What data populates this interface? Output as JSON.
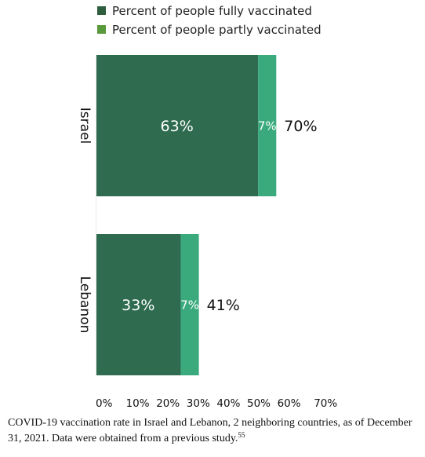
{
  "chart_data": {
    "type": "bar",
    "orientation": "horizontal",
    "stacked": true,
    "categories": [
      "Israel",
      "Lebanon"
    ],
    "series": [
      {
        "name": "Percent of people fully vaccinated",
        "values": [
          63,
          33
        ],
        "labels": [
          "63%",
          "33%"
        ],
        "color": "#2e6b4f"
      },
      {
        "name": "Percent of people partly vaccinated",
        "values": [
          7,
          7
        ],
        "labels": [
          "7%",
          "7%"
        ],
        "color": "#3aaa7d"
      }
    ],
    "totals": [
      "70%",
      "41%"
    ],
    "xticks": [
      "0%",
      "10%",
      "20%",
      "30%",
      "40%",
      "50%",
      "60%",
      "70%"
    ],
    "xlim": [
      0,
      70
    ],
    "grid": false,
    "legend_position": "top",
    "legend_marker_colors": [
      "#2e5e3e",
      "#5a9a3c"
    ]
  },
  "caption": {
    "text": "COVID-19 vaccination rate in Israel and Lebanon, 2 neighboring countries, as of December 31, 2021. Data were obtained from a previous study.",
    "ref": "55"
  }
}
